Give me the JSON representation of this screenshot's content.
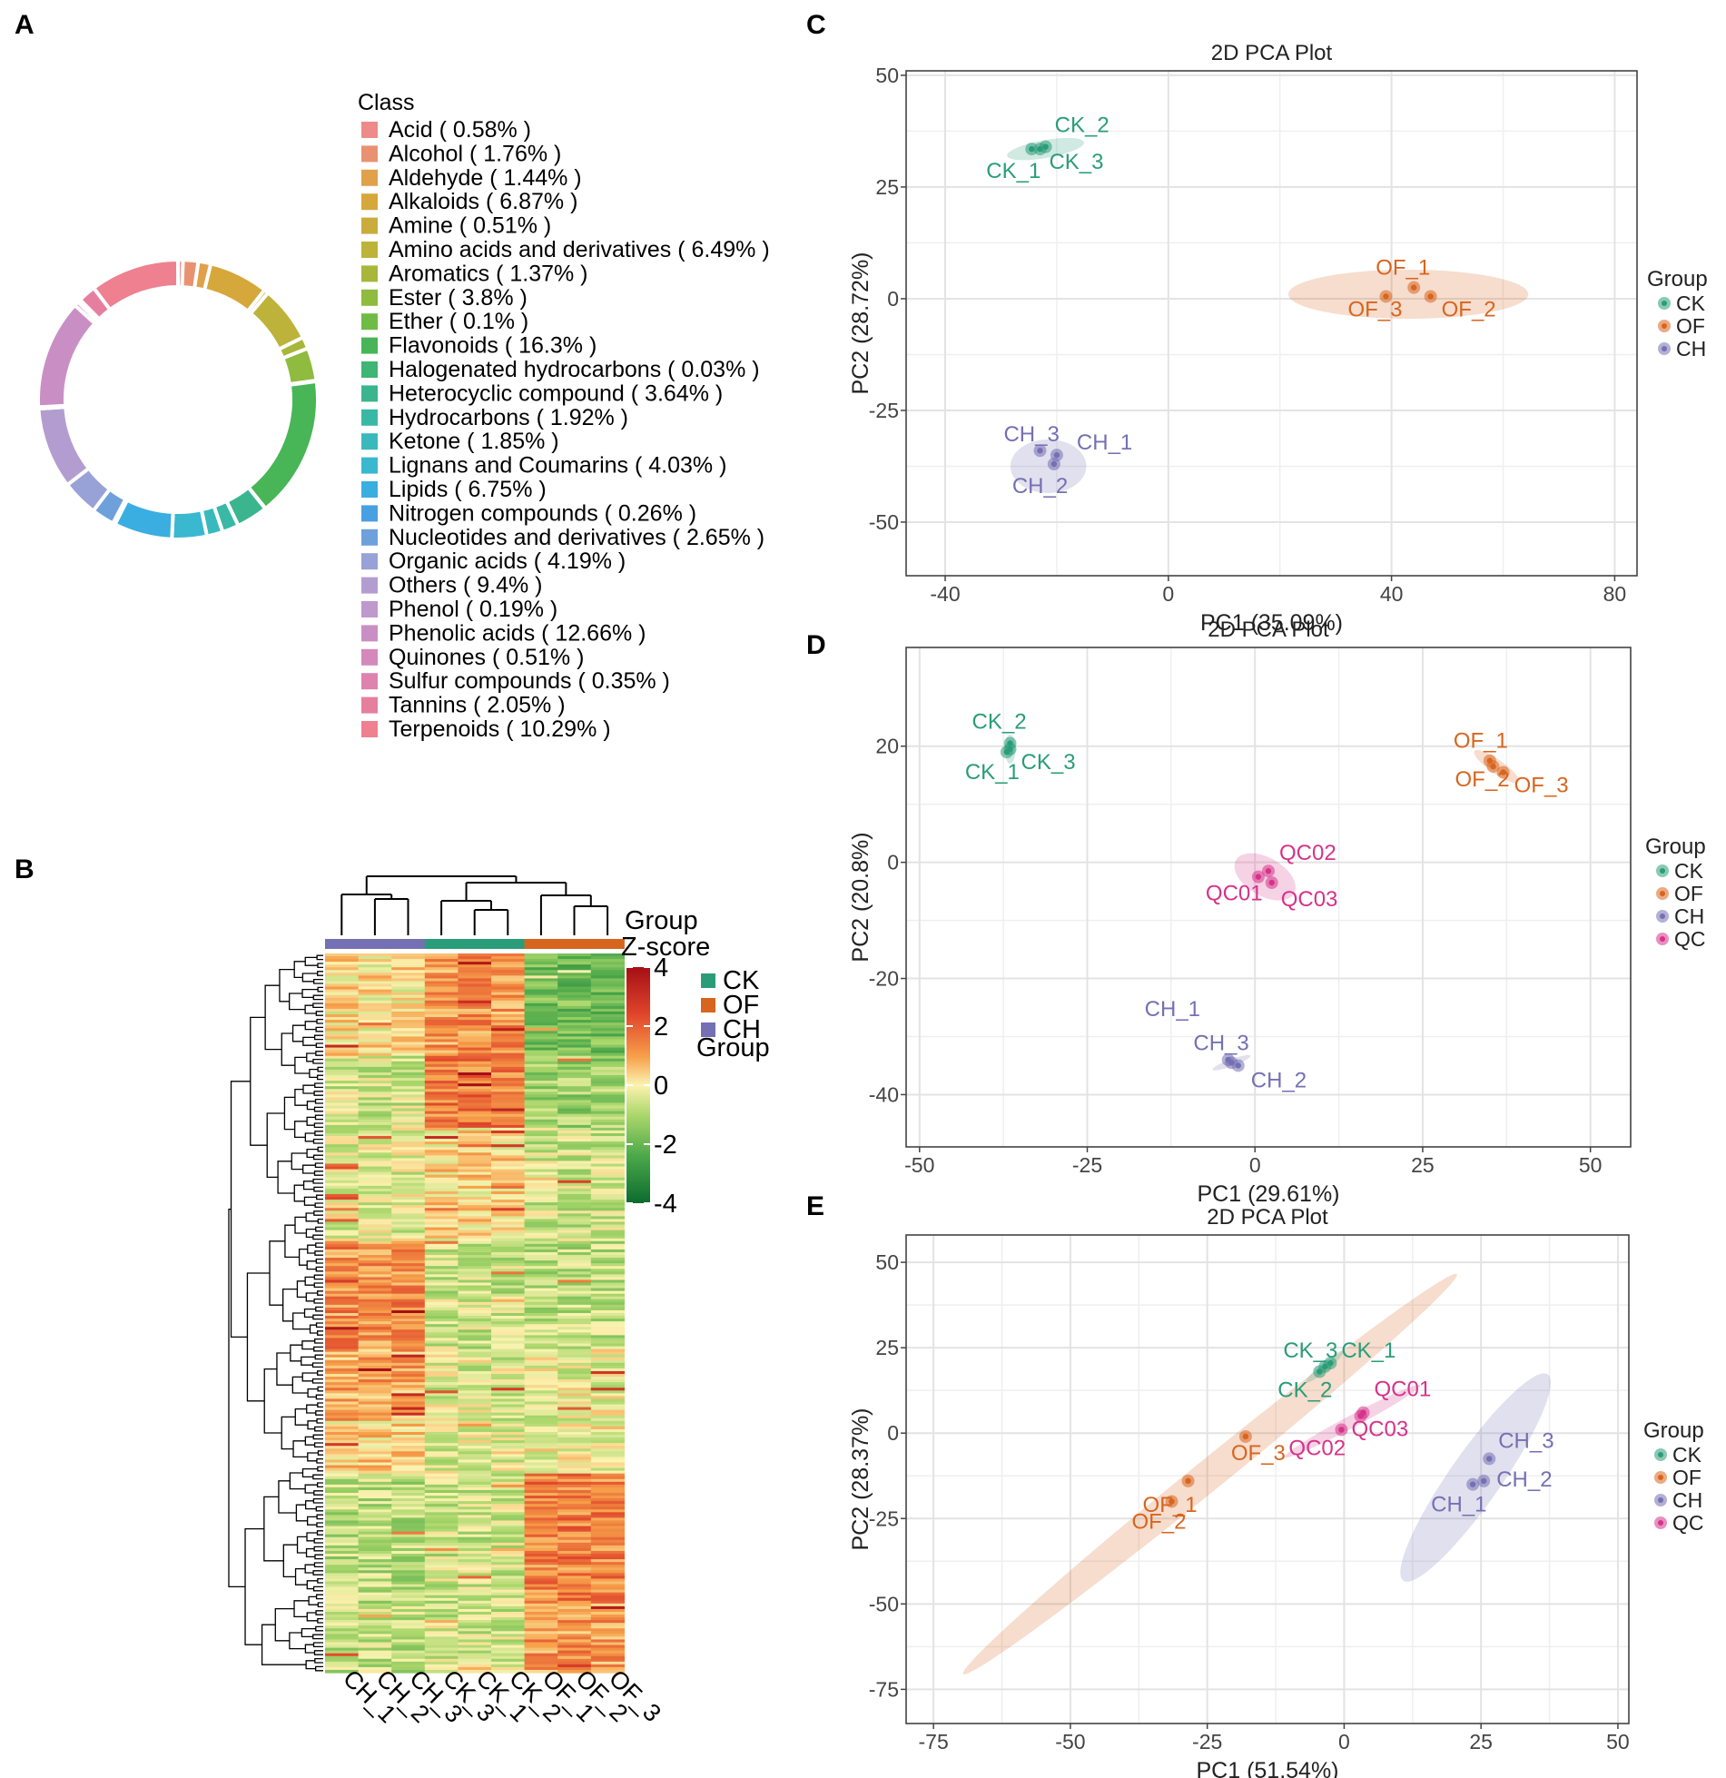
{
  "figure_title": "Metabolite class composition, clustering heatmap and PCA plots",
  "panel_labels": [
    "A",
    "B",
    "C",
    "D",
    "E"
  ],
  "chart_data": [
    {
      "panel": "A",
      "type": "pie",
      "style": "donut",
      "legend_title": "Class",
      "slices": [
        {
          "label": "Acid",
          "value": 0.58,
          "color": "#ef8a8a"
        },
        {
          "label": "Alcohol",
          "value": 1.76,
          "color": "#e99272"
        },
        {
          "label": "Aldehyde",
          "value": 1.44,
          "color": "#e0a14a"
        },
        {
          "label": "Alkaloids",
          "value": 6.87,
          "color": "#d6a73a"
        },
        {
          "label": "Amine",
          "value": 0.51,
          "color": "#c9ac3c"
        },
        {
          "label": "Amino acids and derivatives",
          "value": 6.49,
          "color": "#bdb33a"
        },
        {
          "label": "Aromatics",
          "value": 1.37,
          "color": "#a8b63a"
        },
        {
          "label": "Ester",
          "value": 3.8,
          "color": "#8fbb3e"
        },
        {
          "label": "Ether",
          "value": 0.1,
          "color": "#6fbb45"
        },
        {
          "label": "Flavonoids",
          "value": 16.3,
          "color": "#48b557"
        },
        {
          "label": "Halogenated hydrocarbons",
          "value": 0.03,
          "color": "#3fb576"
        },
        {
          "label": "Heterocyclic compound",
          "value": 3.64,
          "color": "#3ab58e"
        },
        {
          "label": "Hydrocarbons",
          "value": 1.92,
          "color": "#3ab8a6"
        },
        {
          "label": "Ketone",
          "value": 1.85,
          "color": "#3ab9bd"
        },
        {
          "label": "Lignans and Coumarins",
          "value": 4.03,
          "color": "#3ab8d0"
        },
        {
          "label": "Lipids",
          "value": 6.75,
          "color": "#3aaee0"
        },
        {
          "label": "Nitrogen compounds",
          "value": 0.26,
          "color": "#4a9fe0"
        },
        {
          "label": "Nucleotides and derivatives",
          "value": 2.65,
          "color": "#6ea0dc"
        },
        {
          "label": "Organic acids",
          "value": 4.19,
          "color": "#98a2d6"
        },
        {
          "label": "Others",
          "value": 9.4,
          "color": "#b39dd0"
        },
        {
          "label": "Phenol",
          "value": 0.19,
          "color": "#bf98cc"
        },
        {
          "label": "Phenolic acids",
          "value": 12.66,
          "color": "#c98fc4"
        },
        {
          "label": "Quinones",
          "value": 0.51,
          "color": "#d488bb"
        },
        {
          "label": "Sulfur compounds",
          "value": 0.35,
          "color": "#de82ae"
        },
        {
          "label": "Tannins",
          "value": 2.05,
          "color": "#e67f9f"
        },
        {
          "label": "Terpenoids",
          "value": 10.29,
          "color": "#ee8090"
        }
      ]
    },
    {
      "panel": "B",
      "type": "heatmap",
      "title_group": "Group",
      "title_zscore": "Z-score",
      "columns": [
        "CH_1",
        "CH_2",
        "CH_3",
        "CK_3",
        "CK_1",
        "CK_2",
        "OF_1",
        "OF_2",
        "OF_3"
      ],
      "column_groups": [
        "CH",
        "CH",
        "CH",
        "CK",
        "CK",
        "CK",
        "OF",
        "OF",
        "OF"
      ],
      "group_colors": {
        "CK": "#2a9d78",
        "OF": "#d8651e",
        "CH": "#7570b3"
      },
      "group_legend": [
        "CK",
        "OF",
        "CH"
      ],
      "group_legend_title": "Group",
      "colorbar_ticks": [
        4,
        2,
        0,
        -2,
        -4
      ],
      "colorbar_tick_labels": [
        "4",
        "2",
        "0",
        "-2",
        "-4"
      ],
      "zlim": [
        -4,
        4
      ]
    },
    {
      "panel": "C",
      "type": "scatter",
      "title": "2D PCA Plot",
      "xlabel": "PC1 (35.09%)",
      "ylabel": "PC2 (28.72%)",
      "xlim": [
        -47,
        84
      ],
      "ylim": [
        -62,
        51
      ],
      "xticks": [
        -40,
        0,
        40,
        80
      ],
      "xtick_labels": [
        "-40",
        "0",
        "40",
        "80"
      ],
      "yticks": [
        50,
        25,
        0,
        -25,
        -50
      ],
      "ytick_labels": [
        "50",
        "25",
        "0",
        "-25",
        "-50"
      ],
      "legend_title": "Group",
      "legend": [
        "CK",
        "OF",
        "CH"
      ],
      "groups": [
        {
          "name": "CK",
          "color": "#2a9d78",
          "ellipse": {
            "cx": -22,
            "cy": 33.5,
            "rx": 7,
            "ry": 2,
            "angle": 10
          },
          "points": [
            {
              "label": "CK_1",
              "x": -24.5,
              "y": 33.5
            },
            {
              "label": "CK_2",
              "x": -22,
              "y": 34
            },
            {
              "label": "CK_3",
              "x": -23,
              "y": 33.5
            }
          ]
        },
        {
          "name": "OF",
          "color": "#d8651e",
          "ellipse": {
            "cx": 43,
            "cy": 1,
            "rx": 21.5,
            "ry": 5.5,
            "angle": 0
          },
          "points": [
            {
              "label": "OF_1",
              "x": 44,
              "y": 2.5
            },
            {
              "label": "OF_2",
              "x": 47,
              "y": 0.5
            },
            {
              "label": "OF_3",
              "x": 39,
              "y": 0.5
            }
          ]
        },
        {
          "name": "CH",
          "color": "#7570b3",
          "ellipse": {
            "cx": -21.5,
            "cy": -37.5,
            "rx": 6.8,
            "ry": 6,
            "angle": 0
          },
          "points": [
            {
              "label": "CH_1",
              "x": -20,
              "y": -35
            },
            {
              "label": "CH_2",
              "x": -20.5,
              "y": -37
            },
            {
              "label": "CH_3",
              "x": -23,
              "y": -34
            }
          ]
        }
      ]
    },
    {
      "panel": "D",
      "type": "scatter",
      "title": "2D PCA Plot",
      "xlabel": "PC1 (29.61%)",
      "ylabel": "PC2 (20.8%)",
      "xlim": [
        -52,
        56
      ],
      "ylim": [
        -49,
        37
      ],
      "xticks": [
        -50,
        -25,
        0,
        25,
        50
      ],
      "xtick_labels": [
        "-50",
        "-25",
        "0",
        "25",
        "50"
      ],
      "yticks": [
        20,
        0,
        -20,
        -40
      ],
      "ytick_labels": [
        "20",
        "0",
        "-20",
        "-40"
      ],
      "legend_title": "Group",
      "legend": [
        "CK",
        "OF",
        "CH",
        "QC"
      ],
      "groups": [
        {
          "name": "CK",
          "color": "#2a9d78",
          "ellipse": {
            "cx": -36.5,
            "cy": 19.5,
            "rx": 0.8,
            "ry": 2.5,
            "angle": 0
          },
          "points": [
            {
              "label": "CK_1",
              "x": -37,
              "y": 19
            },
            {
              "label": "CK_2",
              "x": -36.5,
              "y": 20.5
            },
            {
              "label": "CK_3",
              "x": -36.5,
              "y": 19.5
            }
          ]
        },
        {
          "name": "OF",
          "color": "#d8651e",
          "ellipse": {
            "cx": 36,
            "cy": 16.5,
            "rx": 4,
            "ry": 1.2,
            "angle": -35
          },
          "points": [
            {
              "label": "OF_1",
              "x": 35,
              "y": 17.5
            },
            {
              "label": "OF_2",
              "x": 35.5,
              "y": 16.5
            },
            {
              "label": "OF_3",
              "x": 37,
              "y": 15.5
            }
          ]
        },
        {
          "name": "QC",
          "color": "#d6338a",
          "ellipse": {
            "cx": 1.5,
            "cy": -2.5,
            "rx": 5,
            "ry": 3.3,
            "angle": -30
          },
          "points": [
            {
              "label": "QC01",
              "x": 0.5,
              "y": -2.5
            },
            {
              "label": "QC02",
              "x": 2,
              "y": -1.5
            },
            {
              "label": "QC03",
              "x": 2.5,
              "y": -3.5
            }
          ]
        },
        {
          "name": "CH",
          "color": "#7570b3",
          "ellipse": {
            "cx": -3.5,
            "cy": -34.5,
            "rx": 3,
            "ry": 0.6,
            "angle": 20
          },
          "points": [
            {
              "label": "CH_1",
              "x": -4,
              "y": -34
            },
            {
              "label": "CH_2",
              "x": -2.5,
              "y": -35
            },
            {
              "label": "CH_3",
              "x": -3.5,
              "y": -34.5
            }
          ]
        }
      ]
    },
    {
      "panel": "E",
      "type": "scatter",
      "title": "2D PCA Plot",
      "xlabel": "PC1 (51.54%)",
      "ylabel": "PC2 (28.37%)",
      "xlim": [
        -80,
        52
      ],
      "ylim": [
        -85,
        58
      ],
      "xticks": [
        -75,
        -50,
        -25,
        0,
        25,
        50
      ],
      "xtick_labels": [
        "-75",
        "-50",
        "-25",
        "0",
        "25",
        "50"
      ],
      "yticks": [
        50,
        25,
        0,
        -25,
        -50,
        -75
      ],
      "ytick_labels": [
        "50",
        "25",
        "0",
        "-25",
        "-50",
        "-75"
      ],
      "legend_title": "Group",
      "legend": [
        "CK",
        "OF",
        "CH",
        "QC"
      ],
      "groups": [
        {
          "name": "OF",
          "color": "#d8651e",
          "ellipse": {
            "cx": -24.5,
            "cy": -12,
            "rx": 58,
            "ry": 4.5,
            "angle": 39
          },
          "points": [
            {
              "label": "OF_1",
              "x": -28.5,
              "y": -14
            },
            {
              "label": "OF_2",
              "x": -31.5,
              "y": -20
            },
            {
              "label": "OF_3",
              "x": -18,
              "y": -1
            }
          ]
        },
        {
          "name": "QC",
          "color": "#d6338a",
          "ellipse": {
            "cx": 1.5,
            "cy": 3.5,
            "rx": 14,
            "ry": 1.8,
            "angle": 28
          },
          "points": [
            {
              "label": "QC01",
              "x": 3.5,
              "y": 6
            },
            {
              "label": "QC02",
              "x": -0.5,
              "y": 1
            },
            {
              "label": "QC03",
              "x": 3,
              "y": 5
            }
          ]
        },
        {
          "name": "CK",
          "color": "#2a9d78",
          "ellipse": {
            "cx": -3.5,
            "cy": 19.5,
            "rx": 4.5,
            "ry": 1.2,
            "angle": 40
          },
          "points": [
            {
              "label": "CK_1",
              "x": -2.5,
              "y": 20.5
            },
            {
              "label": "CK_2",
              "x": -4.5,
              "y": 18
            },
            {
              "label": "CK_3",
              "x": -3.5,
              "y": 19.5
            }
          ]
        },
        {
          "name": "CH",
          "color": "#7570b3",
          "ellipse": {
            "cx": 24,
            "cy": -13,
            "rx": 23,
            "ry": 7.5,
            "angle": 55
          },
          "points": [
            {
              "label": "CH_1",
              "x": 23.5,
              "y": -15
            },
            {
              "label": "CH_2",
              "x": 25.5,
              "y": -14
            },
            {
              "label": "CH_3",
              "x": 26.5,
              "y": -7.5
            }
          ]
        }
      ]
    }
  ]
}
